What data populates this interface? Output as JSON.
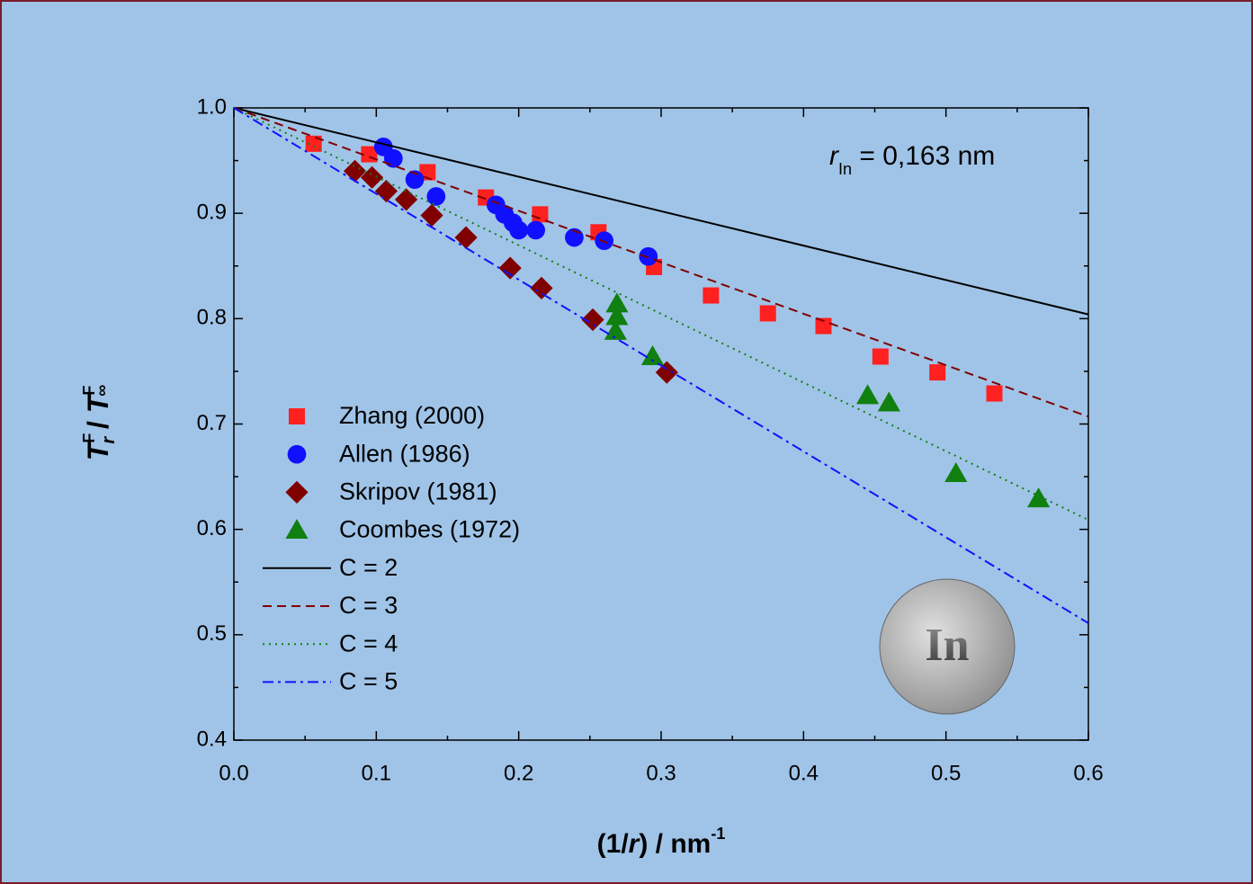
{
  "chart_data": {
    "type": "scatter",
    "x_label": [
      "(1/",
      "r",
      ") / nm",
      "-1"
    ],
    "y_label": [
      "T",
      "F",
      "r",
      " / ",
      "T",
      "F",
      "∞"
    ],
    "annotation": [
      "r",
      "In",
      " = 0,163 nm"
    ],
    "badge": "In",
    "xlim": [
      0,
      0.6
    ],
    "ylim": [
      0.4,
      1.0
    ],
    "xticks": [
      {
        "value": 0,
        "label": "0.0"
      },
      0.1,
      0.2,
      0.3,
      0.4,
      0.5,
      0.6
    ],
    "yticks": [
      0.4,
      0.5,
      0.6,
      0.7,
      0.8,
      0.9,
      {
        "value": 1,
        "label": "1.0"
      }
    ],
    "series": [
      {
        "name": "Zhang (2000)",
        "color": "#ff2020",
        "marker": "square",
        "x": [
          0.056,
          0.095,
          0.136,
          0.177,
          0.215,
          0.256,
          0.295,
          0.335,
          0.375,
          0.414,
          0.454,
          0.494,
          0.534
        ],
        "values": [
          0.966,
          0.956,
          0.939,
          0.915,
          0.899,
          0.882,
          0.849,
          0.822,
          0.805,
          0.793,
          0.764,
          0.749,
          0.729
        ]
      },
      {
        "name": "Allen (1986)",
        "color": "#1010ff",
        "marker": "circle",
        "x": [
          0.105,
          0.112,
          0.127,
          0.142,
          0.184,
          0.19,
          0.196,
          0.2,
          0.212,
          0.239,
          0.26,
          0.291
        ],
        "values": [
          0.963,
          0.952,
          0.932,
          0.916,
          0.908,
          0.899,
          0.891,
          0.884,
          0.884,
          0.877,
          0.874,
          0.859
        ]
      },
      {
        "name": "Skripov (1981)",
        "color": "#800000",
        "marker": "diamond",
        "x": [
          0.085,
          0.097,
          0.107,
          0.121,
          0.139,
          0.163,
          0.194,
          0.216,
          0.252,
          0.304
        ],
        "values": [
          0.94,
          0.934,
          0.921,
          0.913,
          0.898,
          0.877,
          0.848,
          0.829,
          0.799,
          0.749
        ]
      },
      {
        "name": "Coombes (1972)",
        "color": "#108010",
        "marker": "triangle",
        "x": [
          0.269,
          0.269,
          0.268,
          0.294,
          0.445,
          0.46,
          0.507,
          0.565
        ],
        "values": [
          0.814,
          0.802,
          0.788,
          0.764,
          0.727,
          0.72,
          0.653,
          0.629
        ]
      },
      {
        "name": "C = 2",
        "color": "#000000",
        "linestyle": "solid",
        "x": [
          0,
          0.6
        ],
        "values": [
          1,
          0.804
        ]
      },
      {
        "name": "C = 3",
        "color": "#800000",
        "linestyle": "dashed",
        "x": [
          0,
          0.6
        ],
        "values": [
          1,
          0.707
        ]
      },
      {
        "name": "C = 4",
        "color": "#108010",
        "linestyle": "dotted",
        "x": [
          0,
          0.6
        ],
        "values": [
          1,
          0.609
        ]
      },
      {
        "name": "C = 5",
        "color": "#1010ff",
        "linestyle": "dashdot",
        "x": [
          0,
          0.6
        ],
        "values": [
          1,
          0.511
        ]
      }
    ]
  }
}
